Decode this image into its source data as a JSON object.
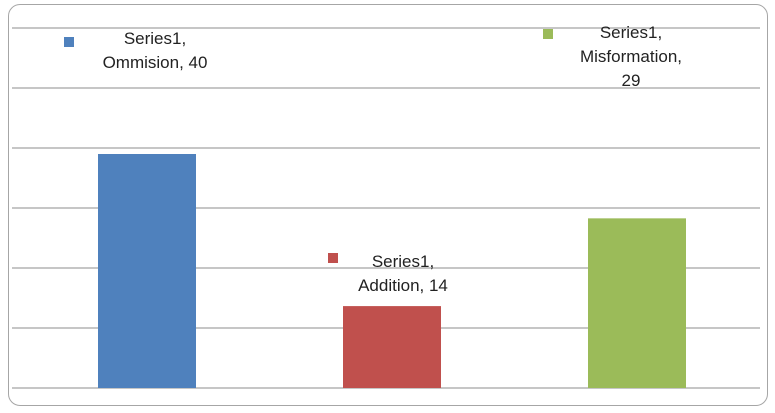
{
  "chart_data": {
    "type": "bar",
    "categories": [
      "Ommision",
      "Addition",
      "Misformation"
    ],
    "series": [
      {
        "name": "Series1",
        "values": [
          40,
          14,
          29
        ]
      }
    ],
    "bar_colors": [
      "#4f81bd",
      "#c0504d",
      "#9bbb59"
    ],
    "gridline_color": "#8c8c8c",
    "data_labels": [
      {
        "line1": "Series1,",
        "line2": "Ommision, 40",
        "line3": ""
      },
      {
        "line1": "Series1,",
        "line2": "Addition, 14",
        "line3": ""
      },
      {
        "line1": "Series1,",
        "line2": "Misformation,",
        "line3": "29"
      }
    ],
    "grid": true,
    "legend": "none"
  }
}
